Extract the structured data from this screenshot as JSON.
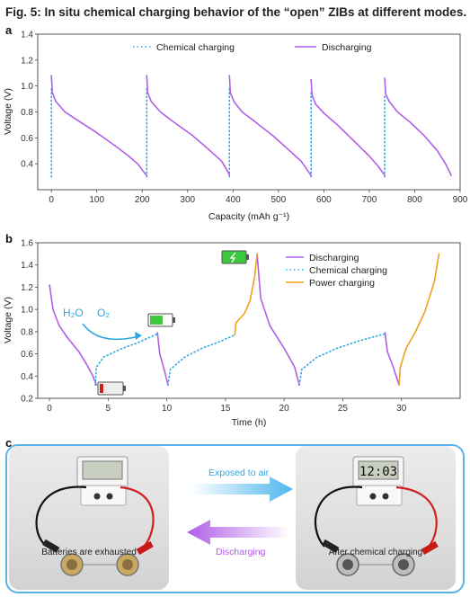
{
  "figure_title": "Fig. 5: In situ chemical charging behavior of the “open” ZIBs at different modes.",
  "colors": {
    "discharge": "#b05ee8",
    "chemical": "#2ea6e0",
    "power": "#f0a020",
    "frame": "#5ab4e8",
    "battery_green": "#3cc83c",
    "battery_red": "#d02020"
  },
  "chart_data": [
    {
      "panel": "a",
      "type": "line",
      "xlabel": "Capacity (mAh g⁻¹)",
      "ylabel": "Voltage (V)",
      "xlim": [
        -30,
        900
      ],
      "ylim": [
        0.2,
        1.4
      ],
      "xticks": [
        0,
        100,
        200,
        300,
        400,
        500,
        600,
        700,
        800,
        900
      ],
      "yticks": [
        0.4,
        0.6,
        0.8,
        1.0,
        1.2,
        1.4
      ],
      "legend": "top",
      "series": [
        {
          "name": "Chemical charging",
          "style": "dotted",
          "segments": [
            [
              [
                0,
                0.3
              ],
              [
                0,
                0.98
              ]
            ],
            [
              [
                210,
                0.3
              ],
              [
                210,
                0.98
              ]
            ],
            [
              [
                392,
                0.3
              ],
              [
                392,
                0.98
              ]
            ],
            [
              [
                572,
                0.3
              ],
              [
                572,
                0.95
              ]
            ],
            [
              [
                734,
                0.3
              ],
              [
                734,
                0.94
              ]
            ]
          ]
        },
        {
          "name": "Discharging",
          "style": "solid",
          "segments": [
            [
              [
                0,
                1.08
              ],
              [
                2,
                0.95
              ],
              [
                10,
                0.88
              ],
              [
                30,
                0.8
              ],
              [
                60,
                0.73
              ],
              [
                100,
                0.64
              ],
              [
                140,
                0.54
              ],
              [
                170,
                0.46
              ],
              [
                190,
                0.4
              ],
              [
                205,
                0.33
              ],
              [
                210,
                0.31
              ]
            ],
            [
              [
                210,
                1.08
              ],
              [
                212,
                0.95
              ],
              [
                220,
                0.88
              ],
              [
                240,
                0.8
              ],
              [
                270,
                0.72
              ],
              [
                310,
                0.62
              ],
              [
                350,
                0.5
              ],
              [
                375,
                0.42
              ],
              [
                390,
                0.33
              ],
              [
                392,
                0.31
              ]
            ],
            [
              [
                392,
                1.08
              ],
              [
                394,
                0.95
              ],
              [
                402,
                0.88
              ],
              [
                420,
                0.8
              ],
              [
                450,
                0.72
              ],
              [
                490,
                0.61
              ],
              [
                525,
                0.5
              ],
              [
                550,
                0.42
              ],
              [
                568,
                0.33
              ],
              [
                572,
                0.31
              ]
            ],
            [
              [
                572,
                1.05
              ],
              [
                574,
                0.93
              ],
              [
                582,
                0.86
              ],
              [
                600,
                0.79
              ],
              [
                630,
                0.7
              ],
              [
                665,
                0.58
              ],
              [
                700,
                0.46
              ],
              [
                720,
                0.38
              ],
              [
                732,
                0.32
              ],
              [
                734,
                0.31
              ]
            ],
            [
              [
                734,
                1.06
              ],
              [
                736,
                0.94
              ],
              [
                744,
                0.88
              ],
              [
                762,
                0.8
              ],
              [
                790,
                0.72
              ],
              [
                820,
                0.62
              ],
              [
                850,
                0.5
              ],
              [
                868,
                0.4
              ],
              [
                878,
                0.33
              ],
              [
                880,
                0.31
              ]
            ]
          ]
        }
      ]
    },
    {
      "panel": "b",
      "type": "line",
      "xlabel": "Time (h)",
      "ylabel": "Voltage (V)",
      "xlim": [
        -1,
        35
      ],
      "ylim": [
        0.2,
        1.6
      ],
      "xticks": [
        0,
        5,
        10,
        15,
        20,
        25,
        30
      ],
      "xtick_labels": [
        "0",
        "5",
        "10",
        "15",
        "20",
        "25",
        "30"
      ],
      "yticks": [
        0.2,
        0.4,
        0.6,
        0.8,
        1.0,
        1.2,
        1.4,
        1.6
      ],
      "legend": "top-right",
      "annotations": [
        "H₂O",
        "O₂"
      ],
      "series": [
        {
          "name": "Discharging",
          "style": "solid",
          "segments": [
            [
              [
                0,
                1.22
              ],
              [
                0.3,
                1.0
              ],
              [
                0.8,
                0.86
              ],
              [
                1.5,
                0.75
              ],
              [
                2.5,
                0.62
              ],
              [
                3.2,
                0.5
              ],
              [
                3.7,
                0.4
              ],
              [
                4,
                0.32
              ]
            ],
            [
              [
                9.2,
                0.79
              ],
              [
                9.4,
                0.6
              ],
              [
                9.8,
                0.45
              ],
              [
                10.1,
                0.32
              ]
            ],
            [
              [
                17.7,
                1.5
              ],
              [
                18,
                1.1
              ],
              [
                18.8,
                0.85
              ],
              [
                20,
                0.65
              ],
              [
                20.9,
                0.48
              ],
              [
                21.3,
                0.32
              ]
            ],
            [
              [
                28.6,
                0.79
              ],
              [
                28.8,
                0.62
              ],
              [
                29.3,
                0.48
              ],
              [
                29.8,
                0.32
              ]
            ]
          ]
        },
        {
          "name": "Chemical charging",
          "style": "dotted",
          "segments": [
            [
              [
                3.9,
                0.32
              ],
              [
                4,
                0.48
              ],
              [
                4.6,
                0.57
              ],
              [
                6,
                0.64
              ],
              [
                7.5,
                0.7
              ],
              [
                9.2,
                0.78
              ]
            ],
            [
              [
                10.1,
                0.32
              ],
              [
                10.3,
                0.46
              ],
              [
                11.5,
                0.57
              ],
              [
                13,
                0.65
              ],
              [
                14.5,
                0.71
              ],
              [
                15.8,
                0.77
              ]
            ],
            [
              [
                21.3,
                0.32
              ],
              [
                21.5,
                0.46
              ],
              [
                22.8,
                0.57
              ],
              [
                24.5,
                0.65
              ],
              [
                26.5,
                0.72
              ],
              [
                28.6,
                0.78
              ]
            ]
          ]
        },
        {
          "name": "Power charging",
          "style": "solid",
          "segments": [
            [
              [
                15.8,
                0.77
              ],
              [
                15.9,
                0.88
              ],
              [
                16.6,
                0.96
              ],
              [
                17.1,
                1.08
              ],
              [
                17.5,
                1.3
              ],
              [
                17.7,
                1.5
              ]
            ],
            [
              [
                29.8,
                0.32
              ],
              [
                29.9,
                0.48
              ],
              [
                30.4,
                0.65
              ],
              [
                31.2,
                0.8
              ],
              [
                32,
                0.98
              ],
              [
                32.8,
                1.25
              ],
              [
                33.2,
                1.5
              ]
            ]
          ]
        }
      ]
    }
  ],
  "panel_labels": {
    "a": "a",
    "b": "b",
    "c": "c"
  },
  "panel_c": {
    "left_caption": "Batteries are exhausted",
    "right_caption": "After chemical charging",
    "top_arrow_label": "Exposed to air",
    "bottom_arrow_label": "Discharging",
    "left_display": "",
    "right_display": "12:03"
  }
}
